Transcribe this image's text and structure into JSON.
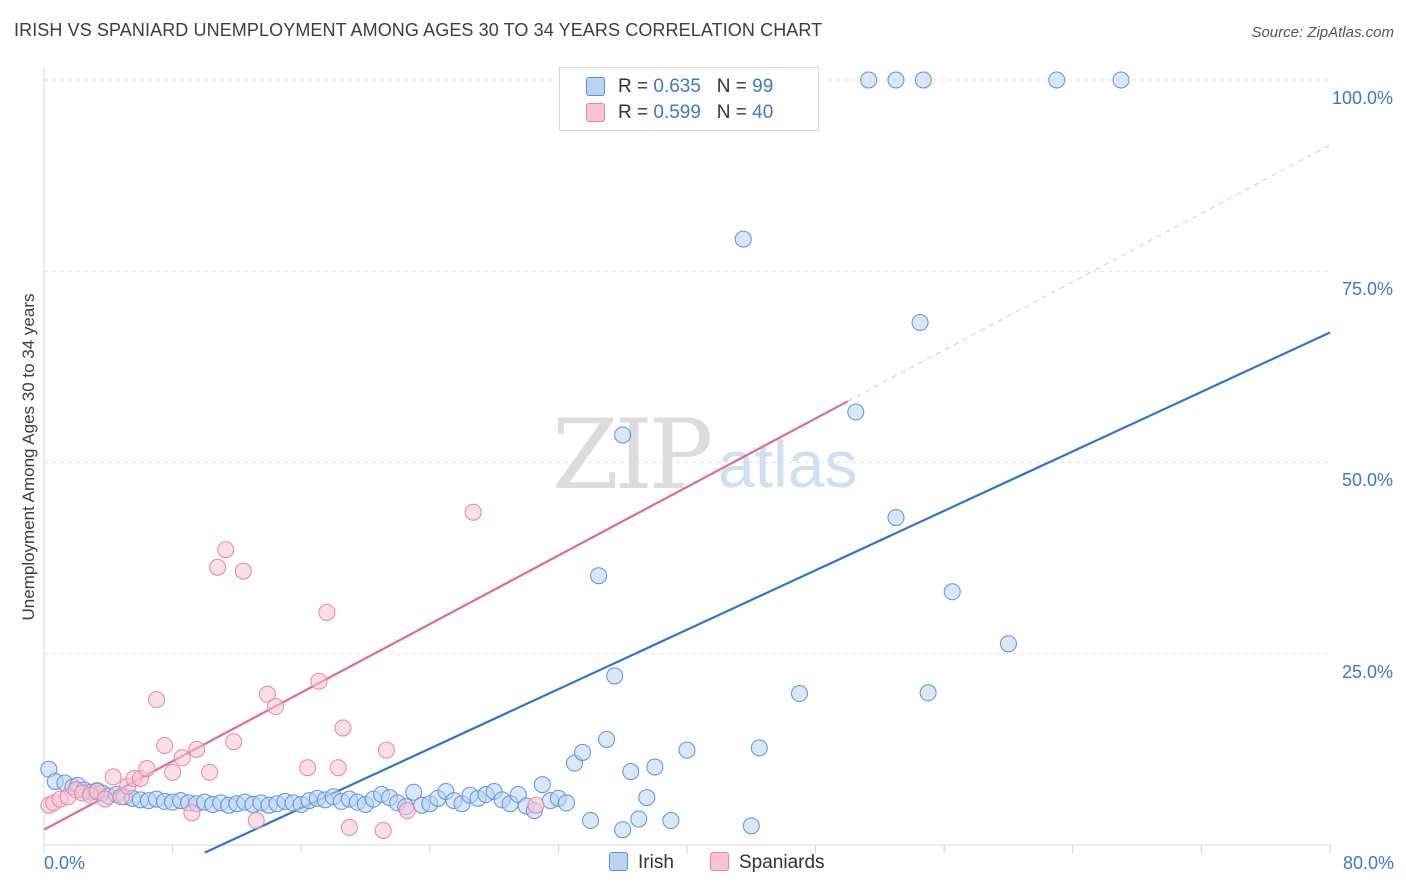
{
  "title": "IRISH VS SPANIARD UNEMPLOYMENT AMONG AGES 30 TO 34 YEARS CORRELATION CHART",
  "source": "Source: ZipAtlas.com",
  "watermark": {
    "zip": "ZIP",
    "atlas": "atlas"
  },
  "legend": {
    "irish": {
      "r_label": "R = ",
      "r_value": "0.635",
      "n_label": "N = ",
      "n_value": "99"
    },
    "spaniards": {
      "r_label": "R = ",
      "r_value": "0.599",
      "n_label": "N = ",
      "n_value": "40"
    }
  },
  "bottom_legend": {
    "irish": "Irish",
    "spaniards": "Spaniards"
  },
  "colors": {
    "irish_fill": "#bcd4f3",
    "irish_stroke": "#5b93dd",
    "irish_line": "#2f74cf",
    "spaniards_fill": "#f9c3d3",
    "spaniards_stroke": "#e884a6",
    "spaniards_line": "#e26a92",
    "grid": "#e3e3e3",
    "tick_text": "#3e78c8"
  },
  "chart_data": {
    "type": "scatter",
    "title": "IRISH VS SPANIARD UNEMPLOYMENT AMONG AGES 30 TO 34 YEARS CORRELATION CHART",
    "xlabel": "",
    "ylabel": "Unemployment Among Ages 30 to 34 years",
    "xlim": [
      0,
      80
    ],
    "ylim": [
      0,
      100
    ],
    "x_tick_labels": [
      "0.0%",
      "80.0%"
    ],
    "y_tick_labels": [
      "25.0%",
      "50.0%",
      "75.0%",
      "100.0%"
    ],
    "y_ticks": [
      25,
      50,
      75,
      100
    ],
    "grid": true,
    "legend_position": "top-center",
    "series": [
      {
        "name": "Irish",
        "r": 0.635,
        "n": 99,
        "trend": {
          "x": [
            10.0,
            80.0
          ],
          "y": [
            -1.0,
            67.0
          ]
        },
        "points": [
          [
            0.3,
            9.9
          ],
          [
            0.7,
            8.3
          ],
          [
            1.3,
            8.1
          ],
          [
            1.8,
            7.6
          ],
          [
            2.1,
            7.8
          ],
          [
            2.5,
            7.2
          ],
          [
            2.9,
            6.9
          ],
          [
            3.3,
            7.1
          ],
          [
            3.6,
            6.8
          ],
          [
            4.0,
            6.4
          ],
          [
            4.5,
            6.6
          ],
          [
            5.0,
            6.3
          ],
          [
            5.5,
            6.1
          ],
          [
            6.0,
            5.9
          ],
          [
            6.5,
            5.8
          ],
          [
            7.0,
            6.0
          ],
          [
            7.5,
            5.7
          ],
          [
            8.0,
            5.6
          ],
          [
            8.5,
            5.8
          ],
          [
            9.0,
            5.5
          ],
          [
            9.5,
            5.4
          ],
          [
            10.0,
            5.6
          ],
          [
            10.5,
            5.3
          ],
          [
            11.0,
            5.5
          ],
          [
            11.5,
            5.2
          ],
          [
            12.0,
            5.4
          ],
          [
            12.5,
            5.6
          ],
          [
            13.0,
            5.3
          ],
          [
            13.5,
            5.5
          ],
          [
            14.0,
            5.2
          ],
          [
            14.5,
            5.4
          ],
          [
            15.0,
            5.7
          ],
          [
            15.5,
            5.5
          ],
          [
            16.0,
            5.3
          ],
          [
            16.5,
            5.8
          ],
          [
            17.0,
            6.1
          ],
          [
            17.5,
            5.9
          ],
          [
            18.0,
            6.3
          ],
          [
            18.5,
            5.7
          ],
          [
            19.0,
            6.0
          ],
          [
            19.5,
            5.6
          ],
          [
            20.0,
            5.3
          ],
          [
            20.5,
            6.0
          ],
          [
            21.0,
            6.6
          ],
          [
            21.5,
            6.2
          ],
          [
            22.0,
            5.5
          ],
          [
            22.5,
            5.0
          ],
          [
            23.0,
            6.9
          ],
          [
            23.5,
            5.2
          ],
          [
            24.0,
            5.4
          ],
          [
            24.5,
            6.1
          ],
          [
            25.0,
            7.0
          ],
          [
            25.5,
            5.8
          ],
          [
            26.0,
            5.4
          ],
          [
            26.5,
            6.5
          ],
          [
            27.0,
            6.1
          ],
          [
            27.5,
            6.6
          ],
          [
            28.0,
            7.0
          ],
          [
            28.5,
            5.9
          ],
          [
            29.0,
            5.4
          ],
          [
            29.5,
            6.6
          ],
          [
            30.0,
            5.1
          ],
          [
            30.5,
            4.5
          ],
          [
            31.0,
            7.9
          ],
          [
            31.5,
            5.8
          ],
          [
            32.0,
            6.1
          ],
          [
            32.5,
            5.5
          ],
          [
            33.0,
            10.7
          ],
          [
            33.5,
            12.1
          ],
          [
            34.0,
            3.2
          ],
          [
            34.5,
            35.2
          ],
          [
            35.0,
            13.8
          ],
          [
            35.5,
            22.1
          ],
          [
            36.0,
            2.0
          ],
          [
            36.5,
            9.6
          ],
          [
            37.0,
            3.4
          ],
          [
            37.5,
            6.2
          ],
          [
            38.0,
            10.2
          ],
          [
            39.0,
            3.2
          ],
          [
            40.0,
            12.4
          ],
          [
            43.5,
            79.2
          ],
          [
            44.0,
            2.5
          ],
          [
            44.5,
            12.7
          ],
          [
            47.0,
            19.8
          ],
          [
            50.5,
            56.6
          ],
          [
            53.0,
            42.8
          ],
          [
            54.5,
            68.3
          ],
          [
            55.0,
            19.9
          ],
          [
            56.5,
            33.1
          ],
          [
            60.0,
            26.3
          ],
          [
            36.0,
            53.6
          ],
          [
            41.0,
            100
          ],
          [
            42.0,
            100
          ],
          [
            43.0,
            100
          ],
          [
            51.3,
            100
          ],
          [
            53.0,
            100
          ],
          [
            54.7,
            100
          ],
          [
            63.0,
            100
          ],
          [
            67.0,
            100
          ]
        ]
      },
      {
        "name": "Spaniards",
        "r": 0.599,
        "n": 40,
        "trend": {
          "x": [
            0.0,
            50.0
          ],
          "y": [
            2.0,
            58.0
          ]
        },
        "trend_extension": {
          "x": [
            50.0,
            80.0
          ],
          "y": [
            58.0,
            91.5
          ]
        },
        "points": [
          [
            0.3,
            5.2
          ],
          [
            0.6,
            5.5
          ],
          [
            1.0,
            6.0
          ],
          [
            1.5,
            6.3
          ],
          [
            2.0,
            7.2
          ],
          [
            2.4,
            6.8
          ],
          [
            2.9,
            6.5
          ],
          [
            3.3,
            7.0
          ],
          [
            3.8,
            6.0
          ],
          [
            4.3,
            8.9
          ],
          [
            4.8,
            6.3
          ],
          [
            5.2,
            7.7
          ],
          [
            5.6,
            8.7
          ],
          [
            6.0,
            8.7
          ],
          [
            6.4,
            10.0
          ],
          [
            7.0,
            19.0
          ],
          [
            7.5,
            13.0
          ],
          [
            8.0,
            9.5
          ],
          [
            8.6,
            11.4
          ],
          [
            9.2,
            4.2
          ],
          [
            9.5,
            12.5
          ],
          [
            10.3,
            9.5
          ],
          [
            10.8,
            36.3
          ],
          [
            11.3,
            38.6
          ],
          [
            11.8,
            13.5
          ],
          [
            12.4,
            35.8
          ],
          [
            13.2,
            3.2
          ],
          [
            13.9,
            19.7
          ],
          [
            14.4,
            18.1
          ],
          [
            16.4,
            10.1
          ],
          [
            17.1,
            21.4
          ],
          [
            17.6,
            30.4
          ],
          [
            18.3,
            10.1
          ],
          [
            18.6,
            15.3
          ],
          [
            19.0,
            2.3
          ],
          [
            21.1,
            1.9
          ],
          [
            21.3,
            12.4
          ],
          [
            22.6,
            4.5
          ],
          [
            26.7,
            43.5
          ],
          [
            30.6,
            5.2
          ]
        ]
      }
    ]
  }
}
